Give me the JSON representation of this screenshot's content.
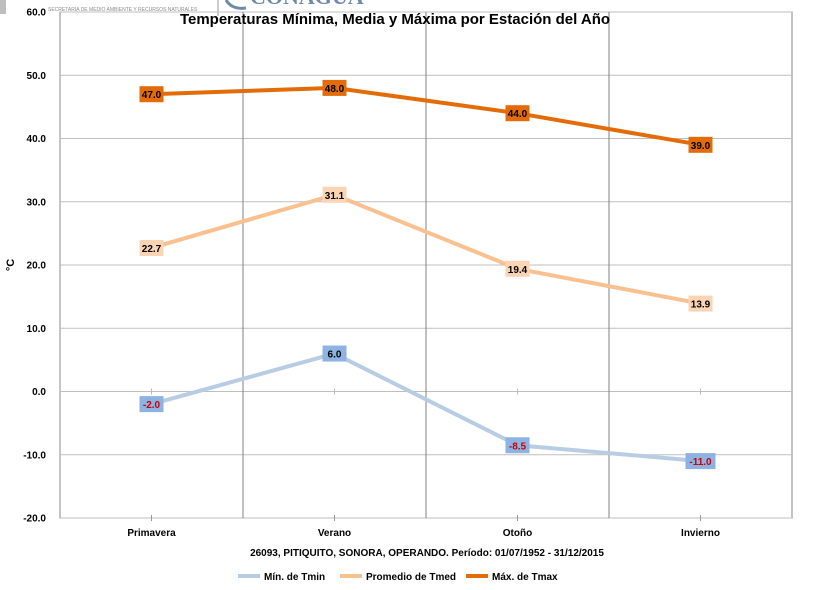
{
  "header": {
    "semarnat_text": "SECRETARÍA DE MEDIO AMBIENTE Y RECURSOS NATURALES",
    "conagua_text": "CONAGUA"
  },
  "chart_data": {
    "type": "line",
    "title": "Temperaturas Mínima, Media y Máxima por Estación del Año",
    "subtitle": "26093, PITIQUITO, SONORA, OPERANDO. Período: 01/07/1952 - 31/12/2015",
    "ylabel": "°C",
    "xlabel": "",
    "ylim": [
      -20,
      60
    ],
    "yticks": [
      "-20.0",
      "-10.0",
      "0.0",
      "10.0",
      "20.0",
      "30.0",
      "40.0",
      "50.0",
      "60.0"
    ],
    "ytick_values": [
      -20,
      -10,
      0,
      10,
      20,
      30,
      40,
      50,
      60
    ],
    "categories": [
      "Primavera",
      "Verano",
      "Otoño",
      "Invierno"
    ],
    "grid": true,
    "legend": "bottom",
    "series": [
      {
        "name": "Mín. de Tmin",
        "values": [
          -2.0,
          6.0,
          -8.5,
          -11.0
        ],
        "labels": [
          "-2.0",
          "6.0",
          "-8.5",
          "-11.0"
        ],
        "color": "#b8cce4",
        "label_bg": "#8db3e2",
        "neg_text_color": "#cc0000"
      },
      {
        "name": "Promedio de Tmed",
        "values": [
          22.7,
          31.1,
          19.4,
          13.9
        ],
        "labels": [
          "22.7",
          "31.1",
          "19.4",
          "13.9"
        ],
        "color": "#fac090",
        "label_bg": "#fbd4b4",
        "neg_text_color": "#cc0000"
      },
      {
        "name": "Máx. de Tmax",
        "values": [
          47.0,
          48.0,
          44.0,
          39.0
        ],
        "labels": [
          "47.0",
          "48.0",
          "44.0",
          "39.0"
        ],
        "color": "#e36c09",
        "label_bg": "#e36c09",
        "neg_text_color": "#cc0000"
      }
    ]
  }
}
